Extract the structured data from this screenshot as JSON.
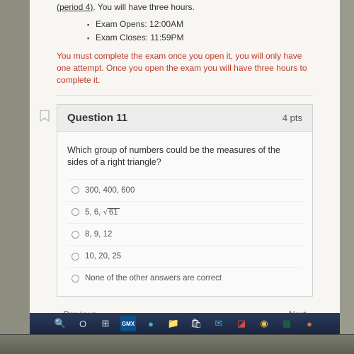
{
  "header": {
    "period_link": "(period 4)",
    "period_suffix": ".  You will have three hours.",
    "bullets": [
      "Exam Opens: 12:00AM",
      "Exam Closes: 11:59PM"
    ],
    "warning": "You must complete the exam once you open it, you will only have one attempt.  Once you open the exam you will have three hours to complete it."
  },
  "question": {
    "title": "Question 11",
    "points": "4 pts",
    "prompt": "Which group of numbers could be the measures of the sides of a right triangle?",
    "options": [
      {
        "text": "300, 400, 600",
        "has_sqrt": false
      },
      {
        "text": "5, 6, ",
        "has_sqrt": true,
        "sqrt_val": "61"
      },
      {
        "text": "8, 9, 12",
        "has_sqrt": false
      },
      {
        "text": "10, 20, 25",
        "has_sqrt": false
      },
      {
        "text": "None of the other answers are correct",
        "has_sqrt": false
      }
    ]
  },
  "nav": {
    "prev": "Previous",
    "next": "Next"
  },
  "taskbar": {
    "bg": "#1a2640",
    "icons": [
      {
        "name": "search-icon",
        "glyph": "🔍",
        "bg": "transparent",
        "color": "#fff"
      },
      {
        "name": "cortana-icon",
        "glyph": "O",
        "bg": "transparent",
        "color": "#cfd8e6"
      },
      {
        "name": "task-view-icon",
        "glyph": "⊞",
        "bg": "transparent",
        "color": "#cfd8e6"
      },
      {
        "name": "gmx-icon",
        "glyph": "GMX",
        "bg": "#0d4f8b",
        "color": "#fff"
      },
      {
        "name": "edge-icon",
        "glyph": "●",
        "bg": "transparent",
        "color": "#38b1d6"
      },
      {
        "name": "explorer-icon",
        "glyph": "📁",
        "bg": "transparent",
        "color": "#f3c969"
      },
      {
        "name": "store-icon",
        "glyph": "🛍",
        "bg": "transparent",
        "color": "#fff"
      },
      {
        "name": "mail-icon",
        "glyph": "✉",
        "bg": "transparent",
        "color": "#4aa0e0"
      },
      {
        "name": "app1-icon",
        "glyph": "◪",
        "bg": "transparent",
        "color": "#d64a3f"
      },
      {
        "name": "chrome-icon",
        "glyph": "◉",
        "bg": "transparent",
        "color": "#e8c14a"
      },
      {
        "name": "excel-icon",
        "glyph": "▦",
        "bg": "transparent",
        "color": "#1e7145"
      },
      {
        "name": "app2-icon",
        "glyph": "●",
        "bg": "transparent",
        "color": "#e06b3f"
      }
    ]
  },
  "colors": {
    "warning": "#c0392b",
    "card_bg": "#fafafa",
    "header_bg": "#ececec"
  }
}
